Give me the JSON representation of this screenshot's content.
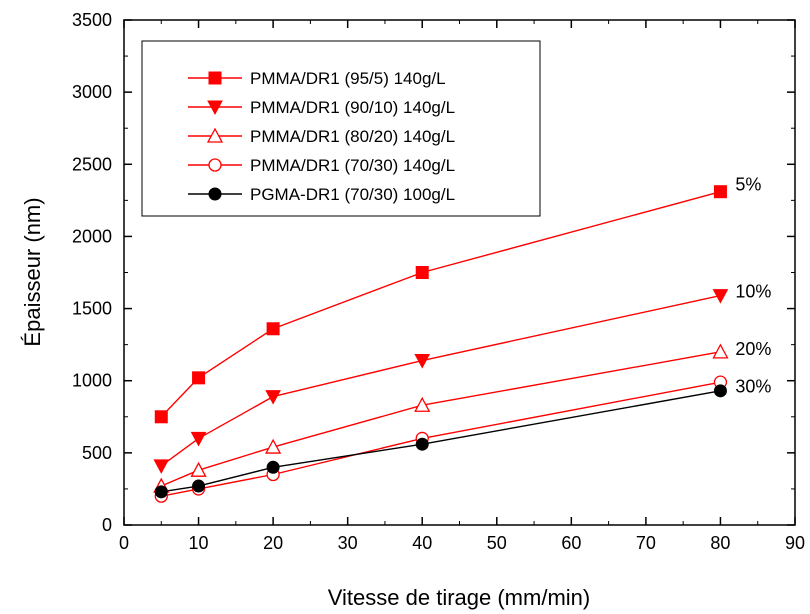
{
  "chart_data": {
    "type": "line",
    "xlabel": "Vitesse de tirage (mm/min)",
    "ylabel": "Épaisseur (nm)",
    "xlim": [
      0,
      90
    ],
    "ylim": [
      0,
      3500
    ],
    "xticks": [
      "0",
      "10",
      "20",
      "30",
      "40",
      "50",
      "60",
      "70",
      "80",
      "90"
    ],
    "yticks": [
      "0",
      "500",
      "1000",
      "1500",
      "2000",
      "2500",
      "3000",
      "3500"
    ],
    "grid": false,
    "legend_position": "top-left",
    "series": [
      {
        "name": "PMMA/DR1 (95/5)  140g/L",
        "color": "#ff0000",
        "marker": "square-filled",
        "x": [
          5,
          10,
          20,
          40,
          80
        ],
        "y": [
          750,
          1020,
          1360,
          1750,
          2310
        ]
      },
      {
        "name": "PMMA/DR1 (90/10) 140g/L",
        "color": "#ff0000",
        "marker": "triangle-down-filled",
        "x": [
          5,
          10,
          20,
          40,
          80
        ],
        "y": [
          410,
          600,
          890,
          1140,
          1590
        ]
      },
      {
        "name": "PMMA/DR1 (80/20) 140g/L",
        "color": "#ff0000",
        "marker": "triangle-up-open",
        "x": [
          5,
          10,
          20,
          40,
          80
        ],
        "y": [
          270,
          380,
          540,
          830,
          1200
        ]
      },
      {
        "name": "PMMA/DR1 (70/30) 140g/L",
        "color": "#ff0000",
        "marker": "circle-open",
        "x": [
          5,
          10,
          20,
          40,
          80
        ],
        "y": [
          200,
          250,
          350,
          600,
          990
        ]
      },
      {
        "name": "PGMA-DR1 (70/30) 100g/L",
        "color": "#000000",
        "marker": "circle-filled",
        "x": [
          5,
          10,
          20,
          40,
          80
        ],
        "y": [
          230,
          270,
          400,
          560,
          930
        ]
      }
    ],
    "annotations": [
      {
        "text": "5%",
        "x": 82,
        "y": 2360
      },
      {
        "text": "10%",
        "x": 82,
        "y": 1620
      },
      {
        "text": "20%",
        "x": 82,
        "y": 1220
      },
      {
        "text": "30%",
        "x": 82,
        "y": 960
      }
    ]
  }
}
